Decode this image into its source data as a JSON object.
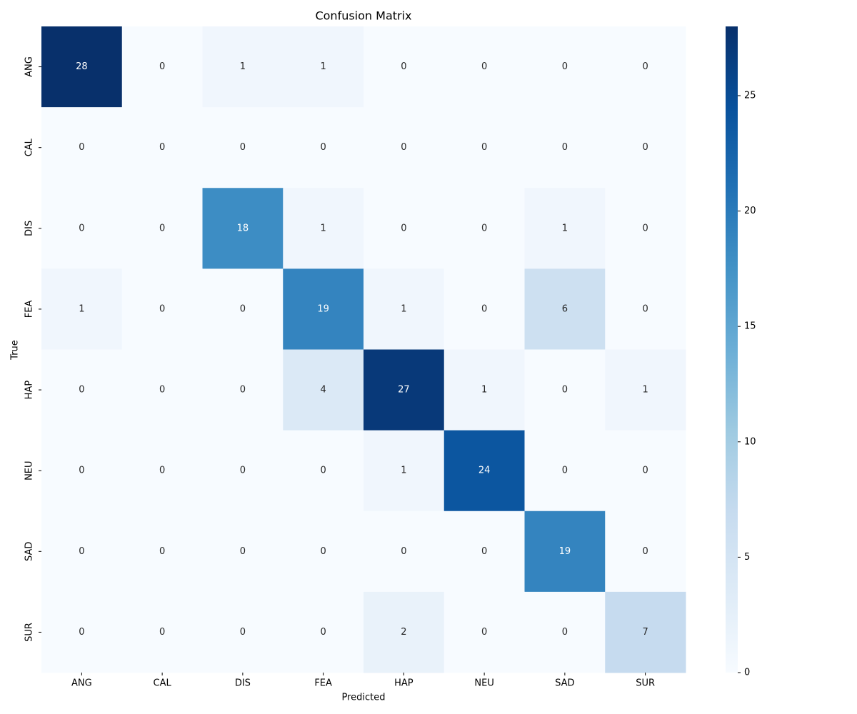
{
  "chart_data": {
    "type": "heatmap",
    "title": "Confusion Matrix",
    "xlabel": "Predicted",
    "ylabel": "True",
    "x_categories": [
      "ANG",
      "CAL",
      "DIS",
      "FEA",
      "HAP",
      "NEU",
      "SAD",
      "SUR"
    ],
    "y_categories": [
      "ANG",
      "CAL",
      "DIS",
      "FEA",
      "HAP",
      "NEU",
      "SAD",
      "SUR"
    ],
    "values": [
      [
        28,
        0,
        1,
        1,
        0,
        0,
        0,
        0
      ],
      [
        0,
        0,
        0,
        0,
        0,
        0,
        0,
        0
      ],
      [
        0,
        0,
        18,
        1,
        0,
        0,
        1,
        0
      ],
      [
        1,
        0,
        0,
        19,
        1,
        0,
        6,
        0
      ],
      [
        0,
        0,
        0,
        4,
        27,
        1,
        0,
        1
      ],
      [
        0,
        0,
        0,
        0,
        1,
        24,
        0,
        0
      ],
      [
        0,
        0,
        0,
        0,
        0,
        0,
        19,
        0
      ],
      [
        0,
        0,
        0,
        0,
        2,
        0,
        0,
        7
      ]
    ],
    "clim": [
      0,
      28
    ],
    "cticks": [
      0,
      5,
      10,
      15,
      20,
      25
    ],
    "colors": [
      "#f7fbff",
      "#deebf7",
      "#c6dbef",
      "#9ecae1",
      "#6baed6",
      "#4292c6",
      "#2171b5",
      "#08519c",
      "#08306b"
    ]
  }
}
